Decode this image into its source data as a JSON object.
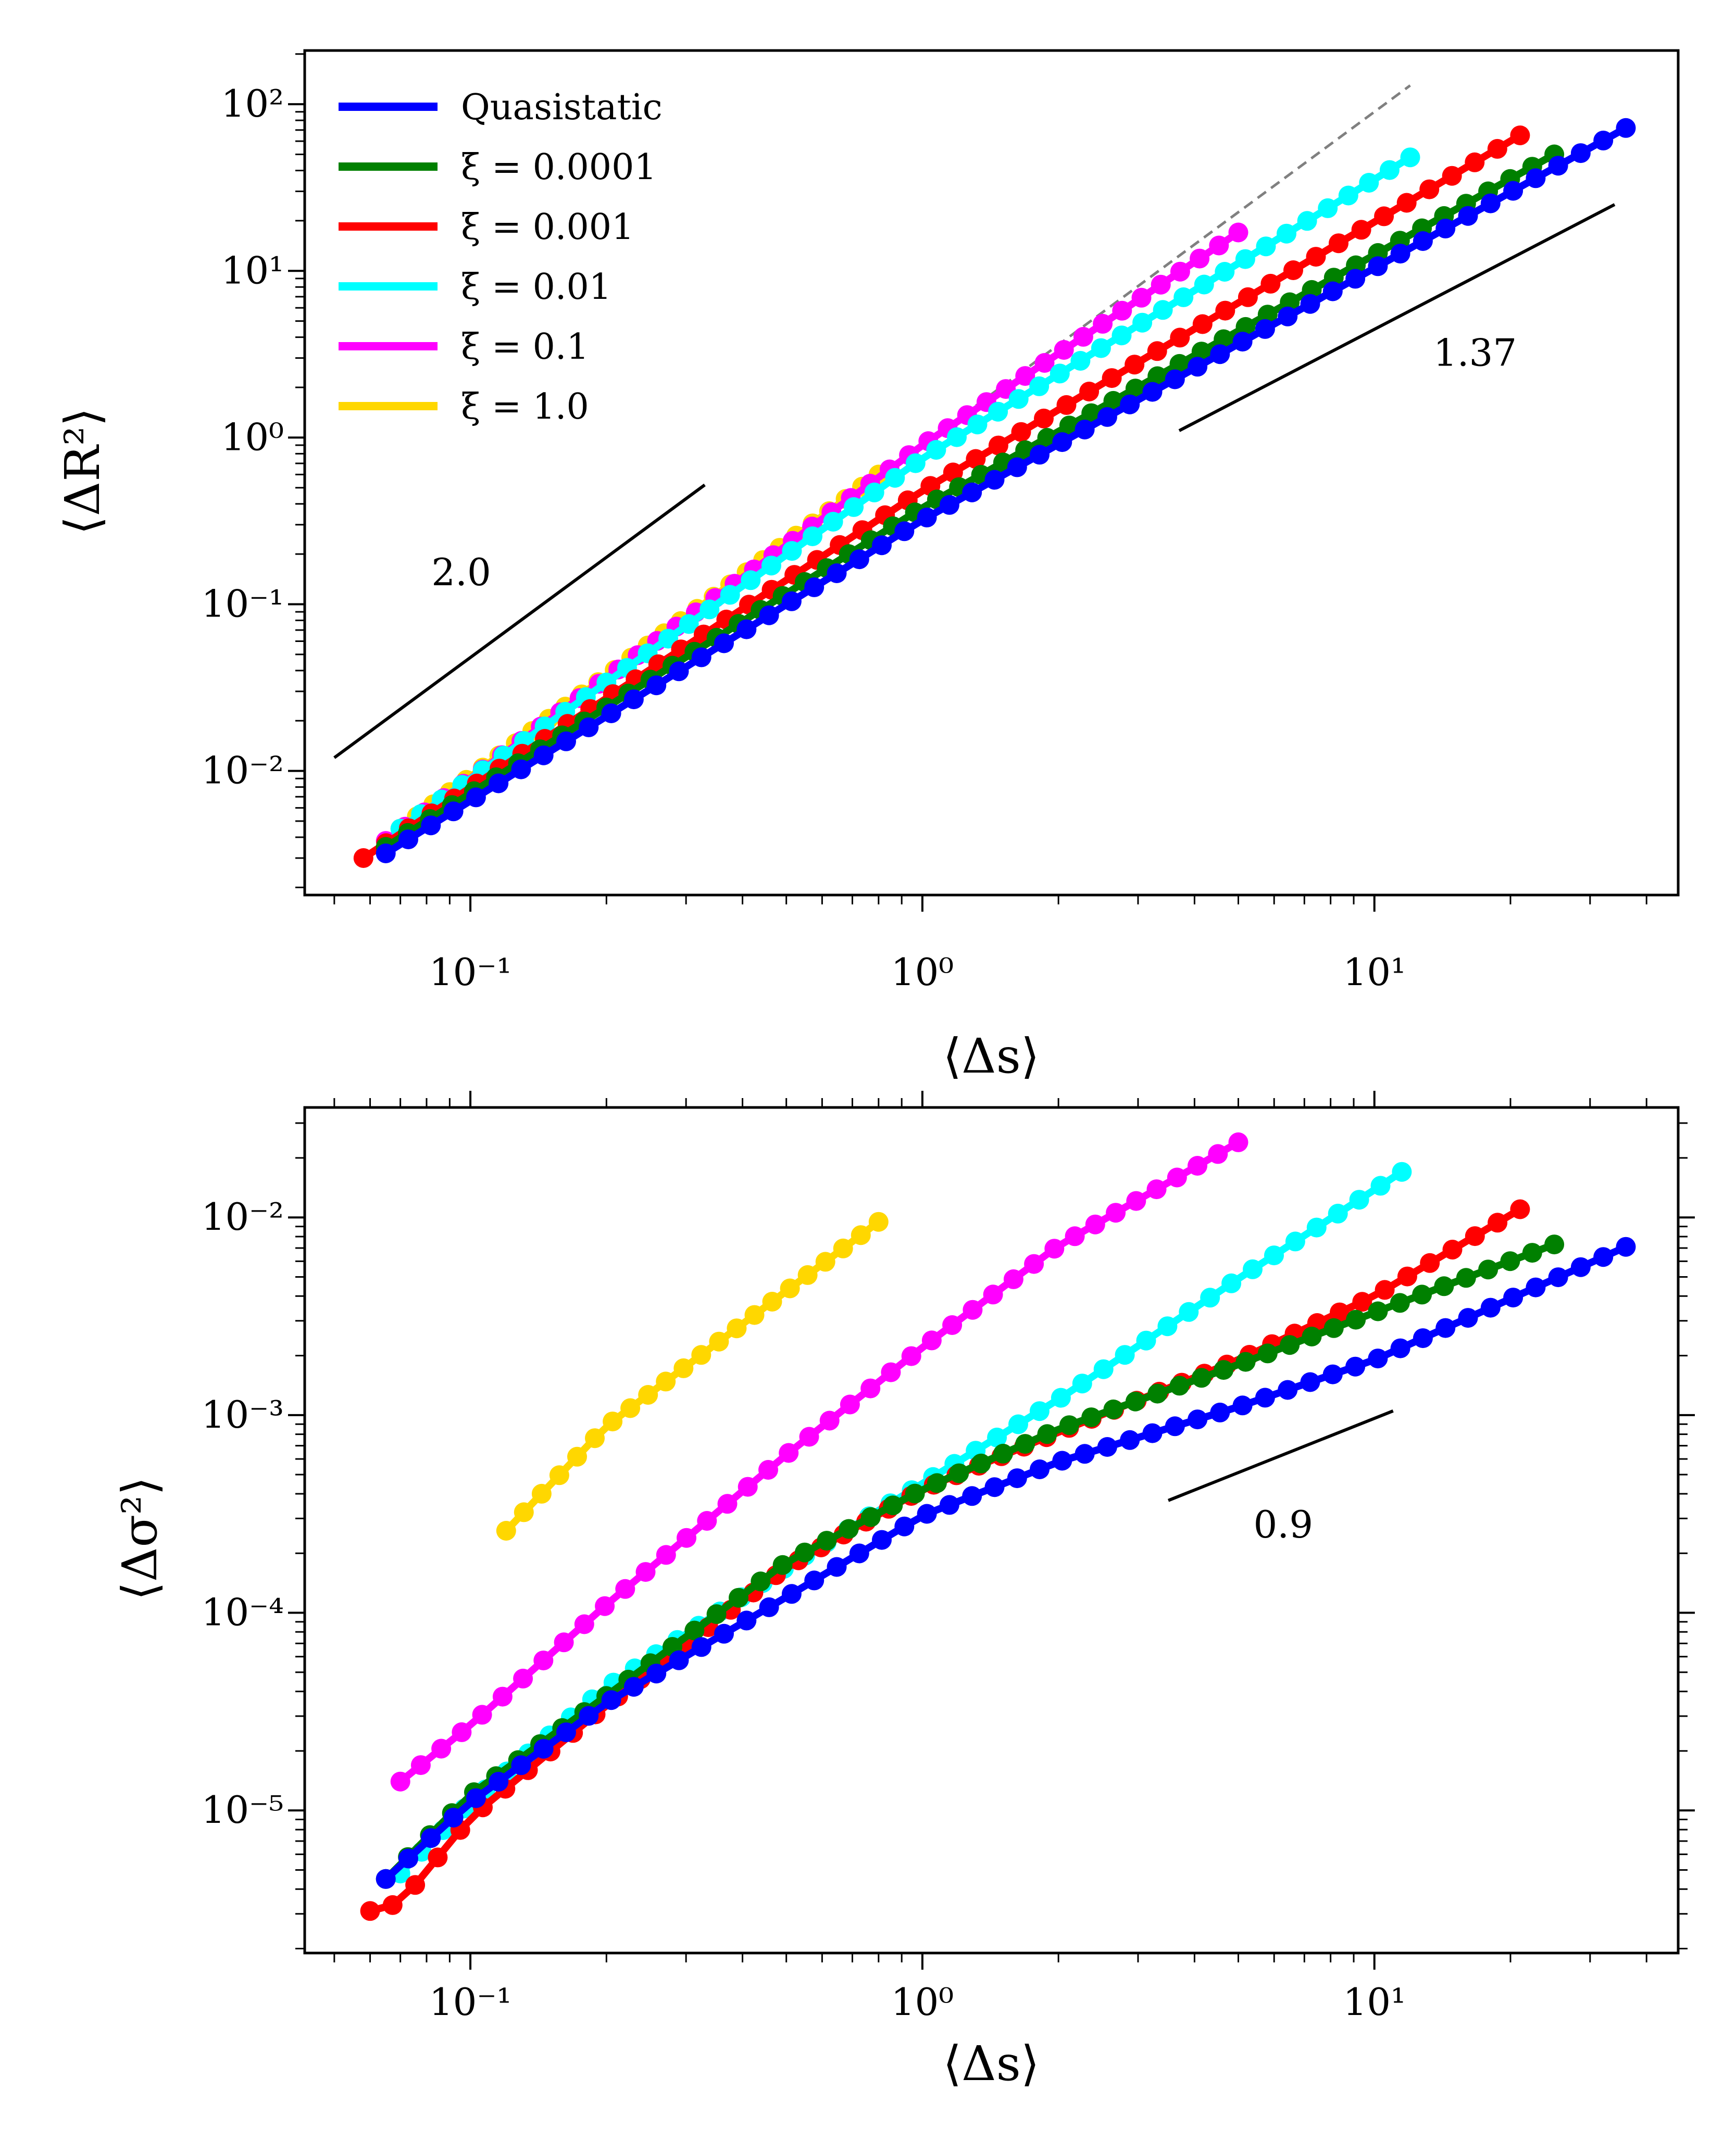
{
  "colors": {
    "quasistatic": "#0000ff",
    "xi_0_0001": "#008000",
    "xi_0_001": "#ff0000",
    "xi_0_01": "#00ffff",
    "xi_0_1": "#ff00ff",
    "xi_1_0": "#ffd700",
    "reference_line": "#000000",
    "dashed_guide": "#808080"
  },
  "chart_data": [
    {
      "type": "line",
      "scale": "log-log",
      "ylabel": "⟨ΔR²⟩",
      "xlabel": "⟨Δs⟩",
      "xlim": [
        0.043,
        47
      ],
      "ylim": [
        0.0018,
        210
      ],
      "x_ticks": [
        {
          "value": 0.1,
          "label": "10⁻¹"
        },
        {
          "value": 1,
          "label": "10⁰"
        },
        {
          "value": 10,
          "label": "10¹"
        }
      ],
      "y_ticks": [
        {
          "value": 0.01,
          "label": "10⁻²"
        },
        {
          "value": 0.1,
          "label": "10⁻¹"
        },
        {
          "value": 1,
          "label": "10⁰"
        },
        {
          "value": 10,
          "label": "10¹"
        },
        {
          "value": 100,
          "label": "10²"
        }
      ],
      "legend": {
        "position": "upper-left",
        "entries": [
          {
            "label": "Quasistatic",
            "color_key": "quasistatic"
          },
          {
            "label": "ξ = 0.0001",
            "color_key": "xi_0_0001"
          },
          {
            "label": "ξ = 0.001",
            "color_key": "xi_0_001"
          },
          {
            "label": "ξ = 0.01",
            "color_key": "xi_0_01"
          },
          {
            "label": "ξ = 0.1",
            "color_key": "xi_0_1"
          },
          {
            "label": "ξ = 1.0",
            "color_key": "xi_1_0"
          }
        ]
      },
      "series": [
        {
          "name": "ξ = 1.0",
          "color_key": "xi_1_0",
          "x_start": 0.07,
          "x_end": 0.8,
          "points": 30,
          "knots": [
            [
              0.07,
              0.0045
            ],
            [
              0.8,
              0.6
            ]
          ]
        },
        {
          "name": "ξ = 0.1",
          "color_key": "xi_0_1",
          "x_start": 0.065,
          "x_end": 5,
          "points": 45,
          "knots": [
            [
              0.065,
              0.0038
            ],
            [
              1,
              0.9
            ],
            [
              5,
              17
            ]
          ]
        },
        {
          "name": "ξ = 0.01",
          "color_key": "xi_0_01",
          "x_start": 0.07,
          "x_end": 12,
          "points": 50,
          "knots": [
            [
              0.07,
              0.0045
            ],
            [
              1,
              0.75
            ],
            [
              12,
              48
            ]
          ]
        },
        {
          "name": "ξ = 0.001",
          "color_key": "xi_0_001",
          "x_start": 0.058,
          "x_end": 21,
          "points": 52,
          "knots": [
            [
              0.058,
              0.003
            ],
            [
              1,
              0.48
            ],
            [
              21,
              65
            ]
          ]
        },
        {
          "name": "ξ = 0.0001",
          "color_key": "xi_0_0001",
          "x_start": 0.065,
          "x_end": 25,
          "points": 54,
          "knots": [
            [
              0.065,
              0.0035
            ],
            [
              1,
              0.38
            ],
            [
              25,
              50
            ]
          ]
        },
        {
          "name": "Quasistatic",
          "color_key": "quasistatic",
          "x_start": 0.065,
          "x_end": 36,
          "points": 56,
          "knots": [
            [
              0.065,
              0.0032
            ],
            [
              1,
              0.32
            ],
            [
              36,
              72
            ]
          ]
        }
      ],
      "guide": {
        "slope": 2.0,
        "x_from": 0.065,
        "x_to": 12,
        "anchor_x": 1,
        "anchor_y": 0.9
      },
      "reference_lines": [
        {
          "label": "2.0",
          "x1": 0.05,
          "y1": 0.012,
          "x2": 0.33,
          "y2": 0.52,
          "label_x": 0.082,
          "label_y": 0.13
        },
        {
          "label": "1.37",
          "x1": 3.7,
          "y1": 1.1,
          "x2": 34,
          "y2": 25,
          "label_x": 13.5,
          "label_y": 2.7
        }
      ]
    },
    {
      "type": "line",
      "scale": "log-log",
      "ylabel": "⟨Δσ²⟩",
      "xlabel": "⟨Δs⟩",
      "xlim": [
        0.043,
        47
      ],
      "ylim": [
        1.9e-06,
        0.036
      ],
      "x_ticks": [
        {
          "value": 0.1,
          "label": "10⁻¹"
        },
        {
          "value": 1,
          "label": "10⁰"
        },
        {
          "value": 10,
          "label": "10¹"
        }
      ],
      "y_ticks": [
        {
          "value": 1e-05,
          "label": "10⁻⁵"
        },
        {
          "value": 0.0001,
          "label": "10⁻⁴"
        },
        {
          "value": 0.001,
          "label": "10⁻³"
        },
        {
          "value": 0.01,
          "label": "10⁻²"
        }
      ],
      "series": [
        {
          "name": "ξ = 1.0",
          "color_key": "xi_1_0",
          "x_start": 0.12,
          "x_end": 0.8,
          "points": 22,
          "knots": [
            [
              0.12,
              0.00026
            ],
            [
              0.2,
              0.00088
            ],
            [
              0.8,
              0.0095
            ]
          ]
        },
        {
          "name": "ξ = 0.1",
          "color_key": "xi_0_1",
          "x_start": 0.07,
          "x_end": 5,
          "points": 42,
          "knots": [
            [
              0.07,
              1.4e-05
            ],
            [
              0.1,
              2.7e-05
            ],
            [
              0.2,
              0.00011
            ],
            [
              0.5,
              0.00063
            ],
            [
              1,
              0.0022
            ],
            [
              2,
              0.0072
            ],
            [
              5,
              0.024
            ]
          ]
        },
        {
          "name": "ξ = 0.01",
          "color_key": "xi_0_01",
          "x_start": 0.07,
          "x_end": 11.5,
          "points": 48,
          "knots": [
            [
              0.07,
              4.8e-06
            ],
            [
              0.1,
              1.1e-05
            ],
            [
              0.2,
              4.2e-05
            ],
            [
              0.5,
              0.00017
            ],
            [
              1,
              0.00045
            ],
            [
              2,
              0.0012
            ],
            [
              5,
              0.0049
            ],
            [
              11.5,
              0.017
            ]
          ]
        },
        {
          "name": "ξ = 0.001",
          "color_key": "xi_0_001",
          "x_start": 0.06,
          "x_end": 21,
          "points": 52,
          "knots": [
            [
              0.06,
              3.1e-06
            ],
            [
              0.07,
              3.4e-06
            ],
            [
              0.1,
              9.2e-06
            ],
            [
              0.2,
              3.4e-05
            ],
            [
              0.5,
              0.00017
            ],
            [
              1,
              0.00042
            ],
            [
              2,
              0.00082
            ],
            [
              5,
              0.0019
            ],
            [
              10,
              0.004
            ],
            [
              21,
              0.011
            ]
          ]
        },
        {
          "name": "ξ = 0.0001",
          "color_key": "xi_0_0001",
          "x_start": 0.065,
          "x_end": 25,
          "points": 54,
          "knots": [
            [
              0.065,
              4.5e-06
            ],
            [
              0.1,
              1.2e-05
            ],
            [
              0.2,
              3.8e-05
            ],
            [
              0.5,
              0.00018
            ],
            [
              1,
              0.00042
            ],
            [
              2,
              0.00085
            ],
            [
              5,
              0.0018
            ],
            [
              10,
              0.0033
            ],
            [
              25,
              0.0073
            ]
          ]
        },
        {
          "name": "Quasistatic",
          "color_key": "quasistatic",
          "x_start": 0.065,
          "x_end": 36,
          "points": 56,
          "knots": [
            [
              0.065,
              4.5e-06
            ],
            [
              0.1,
              1.1e-05
            ],
            [
              0.2,
              3.5e-05
            ],
            [
              0.5,
              0.00012
            ],
            [
              1,
              0.00031
            ],
            [
              2,
              0.00058
            ],
            [
              5,
              0.0011
            ],
            [
              10,
              0.0019
            ],
            [
              36,
              0.0071
            ]
          ]
        }
      ],
      "reference_lines": [
        {
          "label": "0.9",
          "x1": 3.5,
          "y1": 0.00037,
          "x2": 11,
          "y2": 0.00105,
          "label_x": 5.4,
          "label_y": 0.00024
        }
      ]
    }
  ]
}
